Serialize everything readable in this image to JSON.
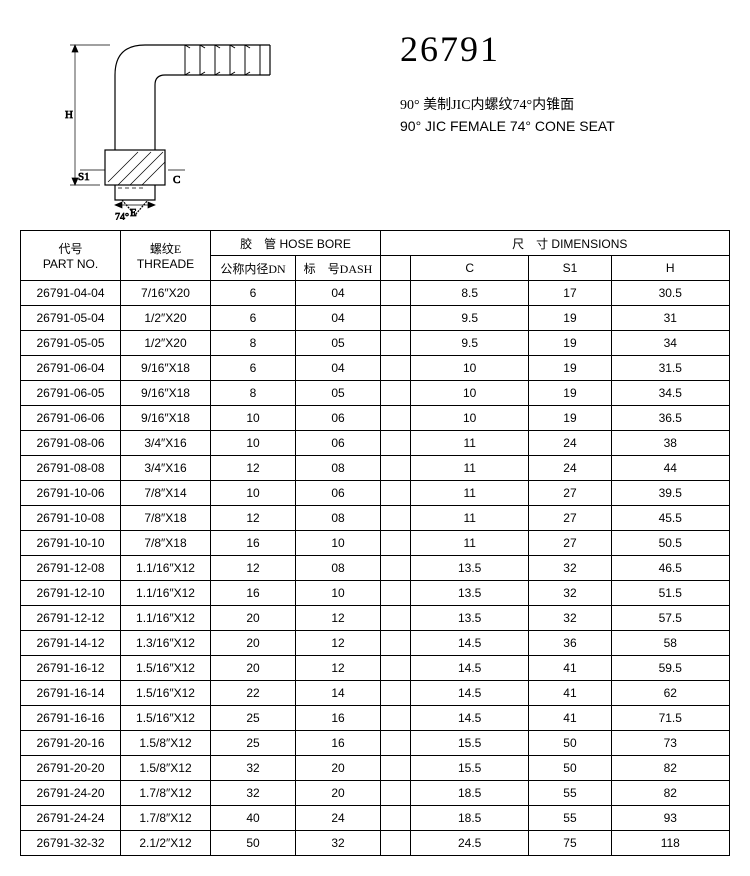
{
  "header": {
    "part_number": "26791",
    "desc_cn": "90° 美制JIC内螺纹74°内锥面",
    "desc_en": "90° JIC FEMALE 74° CONE SEAT"
  },
  "diagram": {
    "labels": {
      "H": "H",
      "S1": "S1",
      "E": "E",
      "C": "C",
      "angle": "74°"
    }
  },
  "table": {
    "headers": {
      "part_no_cn": "代号",
      "part_no_en": "PART NO.",
      "thread_cn": "螺纹E",
      "thread_en": "THREADE",
      "hose_bore_cn": "胶　管",
      "hose_bore_en": "HOSE BORE",
      "dn_cn": "公称内径DN",
      "dash_cn": "标　号DASH",
      "dim_cn": "尺　寸",
      "dim_en": "DIMENSIONS",
      "C": "C",
      "S1": "S1",
      "H": "H"
    },
    "rows": [
      {
        "pn": "26791-04-04",
        "th": "7/16″X20",
        "dn": "6",
        "dash": "04",
        "c": "8.5",
        "s1": "17",
        "h": "30.5"
      },
      {
        "pn": "26791-05-04",
        "th": "1/2″X20",
        "dn": "6",
        "dash": "04",
        "c": "9.5",
        "s1": "19",
        "h": "31"
      },
      {
        "pn": "26791-05-05",
        "th": "1/2″X20",
        "dn": "8",
        "dash": "05",
        "c": "9.5",
        "s1": "19",
        "h": "34"
      },
      {
        "pn": "26791-06-04",
        "th": "9/16″X18",
        "dn": "6",
        "dash": "04",
        "c": "10",
        "s1": "19",
        "h": "31.5"
      },
      {
        "pn": "26791-06-05",
        "th": "9/16″X18",
        "dn": "8",
        "dash": "05",
        "c": "10",
        "s1": "19",
        "h": "34.5"
      },
      {
        "pn": "26791-06-06",
        "th": "9/16″X18",
        "dn": "10",
        "dash": "06",
        "c": "10",
        "s1": "19",
        "h": "36.5"
      },
      {
        "pn": "26791-08-06",
        "th": "3/4″X16",
        "dn": "10",
        "dash": "06",
        "c": "11",
        "s1": "24",
        "h": "38"
      },
      {
        "pn": "26791-08-08",
        "th": "3/4″X16",
        "dn": "12",
        "dash": "08",
        "c": "11",
        "s1": "24",
        "h": "44"
      },
      {
        "pn": "26791-10-06",
        "th": "7/8″X14",
        "dn": "10",
        "dash": "06",
        "c": "11",
        "s1": "27",
        "h": "39.5"
      },
      {
        "pn": "26791-10-08",
        "th": "7/8″X18",
        "dn": "12",
        "dash": "08",
        "c": "11",
        "s1": "27",
        "h": "45.5"
      },
      {
        "pn": "26791-10-10",
        "th": "7/8″X18",
        "dn": "16",
        "dash": "10",
        "c": "11",
        "s1": "27",
        "h": "50.5"
      },
      {
        "pn": "26791-12-08",
        "th": "1.1/16″X12",
        "dn": "12",
        "dash": "08",
        "c": "13.5",
        "s1": "32",
        "h": "46.5"
      },
      {
        "pn": "26791-12-10",
        "th": "1.1/16″X12",
        "dn": "16",
        "dash": "10",
        "c": "13.5",
        "s1": "32",
        "h": "51.5"
      },
      {
        "pn": "26791-12-12",
        "th": "1.1/16″X12",
        "dn": "20",
        "dash": "12",
        "c": "13.5",
        "s1": "32",
        "h": "57.5"
      },
      {
        "pn": "26791-14-12",
        "th": "1.3/16″X12",
        "dn": "20",
        "dash": "12",
        "c": "14.5",
        "s1": "36",
        "h": "58"
      },
      {
        "pn": "26791-16-12",
        "th": "1.5/16″X12",
        "dn": "20",
        "dash": "12",
        "c": "14.5",
        "s1": "41",
        "h": "59.5"
      },
      {
        "pn": "26791-16-14",
        "th": "1.5/16″X12",
        "dn": "22",
        "dash": "14",
        "c": "14.5",
        "s1": "41",
        "h": "62"
      },
      {
        "pn": "26791-16-16",
        "th": "1.5/16″X12",
        "dn": "25",
        "dash": "16",
        "c": "14.5",
        "s1": "41",
        "h": "71.5"
      },
      {
        "pn": "26791-20-16",
        "th": "1.5/8″X12",
        "dn": "25",
        "dash": "16",
        "c": "15.5",
        "s1": "50",
        "h": "73"
      },
      {
        "pn": "26791-20-20",
        "th": "1.5/8″X12",
        "dn": "32",
        "dash": "20",
        "c": "15.5",
        "s1": "50",
        "h": "82"
      },
      {
        "pn": "26791-24-20",
        "th": "1.7/8″X12",
        "dn": "32",
        "dash": "20",
        "c": "18.5",
        "s1": "55",
        "h": "82"
      },
      {
        "pn": "26791-24-24",
        "th": "1.7/8″X12",
        "dn": "40",
        "dash": "24",
        "c": "18.5",
        "s1": "55",
        "h": "93"
      },
      {
        "pn": "26791-32-32",
        "th": "2.1/2″X12",
        "dn": "50",
        "dash": "32",
        "c": "24.5",
        "s1": "75",
        "h": "118"
      }
    ]
  },
  "style": {
    "border_color": "#000000",
    "bg": "#ffffff",
    "font_size_table": 12,
    "font_size_title": 36
  }
}
